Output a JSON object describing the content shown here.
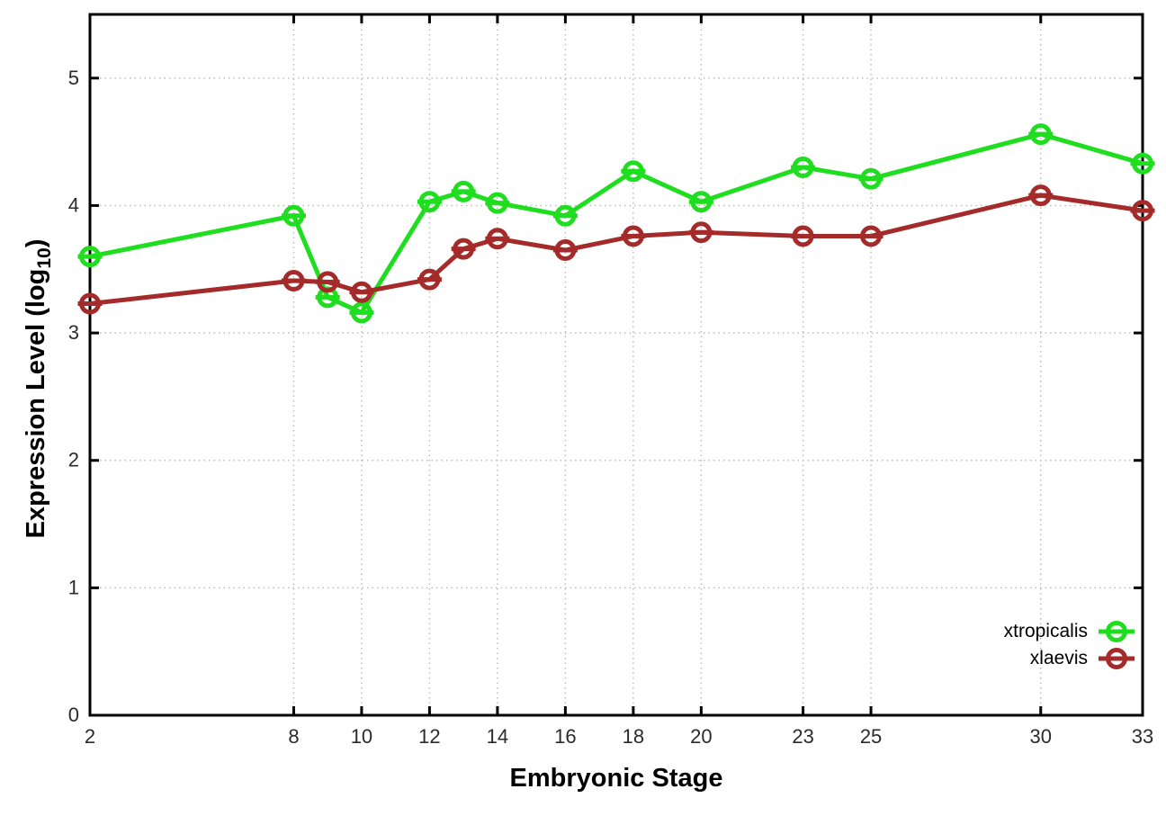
{
  "chart_data": {
    "type": "line",
    "title": "",
    "xlabel": "Embryonic Stage",
    "ylabel_main": "Expression Level (log",
    "ylabel_sub": "10",
    "ylabel_close": ")",
    "x": [
      2,
      8,
      9,
      10,
      12,
      13,
      14,
      16,
      18,
      20,
      23,
      25,
      30,
      33
    ],
    "series": [
      {
        "name": "xtropicalis",
        "color": "#1fdd1f",
        "values": [
          3.6,
          3.92,
          3.28,
          3.16,
          4.03,
          4.11,
          4.02,
          3.92,
          4.27,
          4.03,
          4.3,
          4.21,
          4.56,
          4.33
        ]
      },
      {
        "name": "xlaevis",
        "color": "#a52a2a",
        "values": [
          3.23,
          3.41,
          3.4,
          3.32,
          3.42,
          3.66,
          3.74,
          3.65,
          3.76,
          3.79,
          3.76,
          3.76,
          4.08,
          3.96
        ]
      }
    ],
    "xlim": [
      2,
      33
    ],
    "ylim": [
      0,
      5.5
    ],
    "xticks": [
      2,
      8,
      10,
      12,
      14,
      16,
      18,
      20,
      23,
      25,
      30,
      33
    ],
    "yticks": [
      0,
      1,
      2,
      3,
      4,
      5
    ],
    "grid": true,
    "grid_style": "dotted",
    "legend_position": "bottom-right-inside",
    "marker": "open-circle-with-errorbar-cap",
    "axis_color": "#000000",
    "grid_color": "#bdbdbd",
    "tick_label_color": "#2b2b2b"
  }
}
